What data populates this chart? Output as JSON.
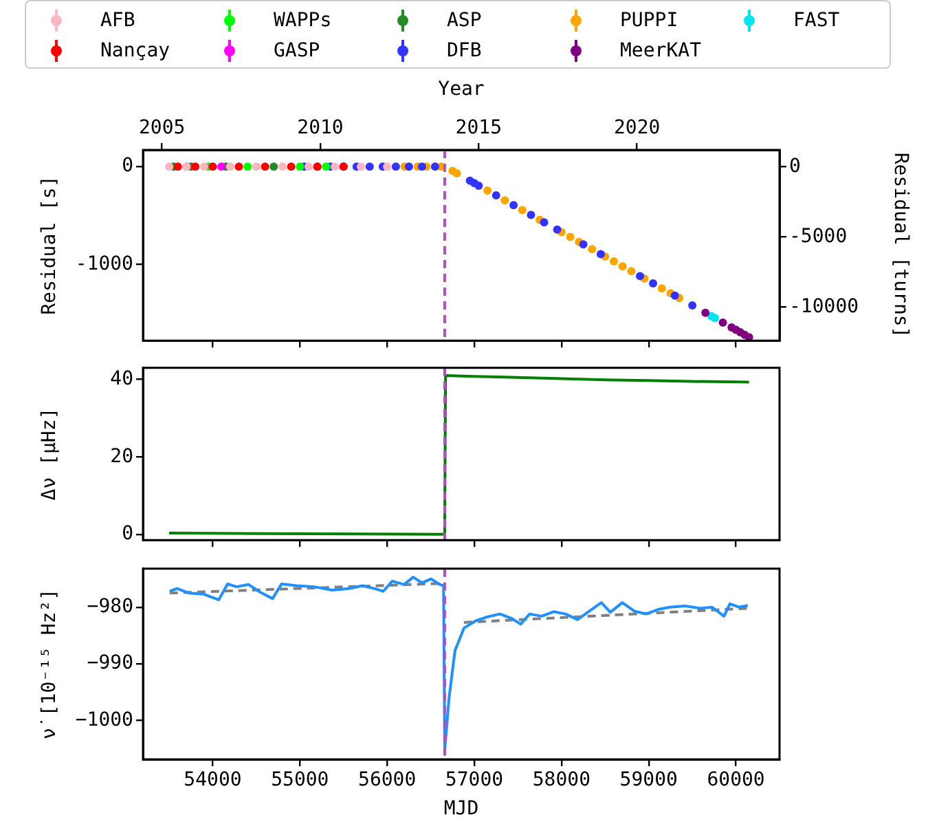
{
  "chart_data": [
    {
      "type": "scatter",
      "legend": "top",
      "marker": "circle",
      "tick_labels": "y",
      "xlim": [
        53200,
        60500
      ],
      "xticks": [
        54000,
        55000,
        56000,
        57000,
        58000,
        59000,
        60000
      ],
      "x2label": "Year",
      "x2lim": [
        2004.4,
        2024.5
      ],
      "x2ticks": [
        2005,
        2010,
        2015,
        2020
      ],
      "ylabel": "Residual [s]",
      "ylim": [
        -1780,
        170
      ],
      "yticks": [
        -1000,
        0
      ],
      "y2label": "Residual [turns]",
      "y2lim": [
        -12390,
        1190
      ],
      "y2ticks": [
        -10000,
        -5000,
        0
      ],
      "ref_lines": [
        {
          "axis": "x",
          "value": 56660,
          "color": "#b04fc0",
          "line_style": "dashed"
        }
      ],
      "series": [
        {
          "name": "AFB",
          "color": "#ffb6c1",
          "x": [
            53500,
            53700,
            53900,
            54200,
            54500,
            54800,
            55100,
            55400,
            55700,
            56000
          ],
          "values": [
            0,
            0,
            0,
            0,
            0,
            0,
            0,
            0,
            0,
            0
          ]
        },
        {
          "name": "Nançay",
          "color": "#ff0000",
          "x": [
            53600,
            53800,
            54000,
            54300,
            54600,
            54900,
            55200,
            55500
          ],
          "values": [
            0,
            0,
            0,
            0,
            0,
            0,
            0,
            0
          ]
        },
        {
          "name": "WAPPs",
          "color": "#00ff00",
          "x": [
            53950,
            54400,
            55000,
            55300
          ],
          "values": [
            0,
            0,
            0,
            0
          ]
        },
        {
          "name": "GASP",
          "color": "#ff00ff",
          "x": [
            53700,
            54100
          ],
          "values": [
            0,
            0
          ]
        },
        {
          "name": "ASP",
          "color": "#228b22",
          "x": [
            53550,
            53750,
            54150,
            54700
          ],
          "values": [
            0,
            0,
            0,
            0
          ]
        },
        {
          "name": "DFB",
          "color": "#3333ff",
          "x": [
            55050,
            55200,
            55350,
            55500,
            55650,
            55800,
            55950,
            56100,
            56250,
            56400,
            56550,
            56950,
            57000,
            57050,
            57250,
            57450,
            57650,
            57800,
            57950,
            58250,
            58450,
            58900,
            59050,
            59300,
            59500
          ],
          "values": [
            0,
            0,
            0,
            0,
            0,
            0,
            0,
            0,
            0,
            0,
            0,
            -145,
            -170,
            -195,
            -295,
            -395,
            -495,
            -570,
            -645,
            -795,
            -895,
            -1120,
            -1195,
            -1320,
            -1420
          ]
        },
        {
          "name": "PUPPI",
          "color": "#ffa500",
          "x": [
            56200,
            56350,
            56450,
            56550,
            56620,
            56750,
            56800,
            57150,
            57350,
            57550,
            57750,
            58000,
            58100,
            58200,
            58350,
            58500,
            58600,
            58700,
            58800,
            58950,
            59150,
            59250,
            59350
          ],
          "values": [
            0,
            0,
            0,
            0,
            0,
            -45,
            -70,
            -245,
            -345,
            -445,
            -545,
            -670,
            -720,
            -770,
            -845,
            -920,
            -970,
            -1020,
            -1070,
            -1145,
            -1245,
            -1295,
            -1345
          ]
        },
        {
          "name": "MeerKAT",
          "color": "#800080",
          "x": [
            59650,
            59850,
            59950,
            60000,
            60050,
            60100,
            60150
          ],
          "values": [
            -1495,
            -1595,
            -1645,
            -1670,
            -1695,
            -1720,
            -1745
          ]
        },
        {
          "name": "FAST",
          "color": "#00e5ee",
          "x": [
            59720,
            59760
          ],
          "values": [
            -1530,
            -1550
          ]
        }
      ]
    },
    {
      "type": "line",
      "marker": "none",
      "tick_labels": "y",
      "xlim": [
        53200,
        60500
      ],
      "xticks": [
        54000,
        55000,
        56000,
        57000,
        58000,
        59000,
        60000
      ],
      "ylabel": "Δν [μHz]",
      "ylim": [
        -1.5,
        43
      ],
      "yticks": [
        0,
        20,
        40
      ],
      "ref_lines": [
        {
          "axis": "x",
          "value": 56660,
          "color": "#b04fc0",
          "line_style": "dashed"
        }
      ],
      "series": [
        {
          "color": "#008000",
          "x": [
            53500,
            54500,
            55500,
            56600,
            56660,
            56670,
            57000,
            57500,
            58000,
            58500,
            59000,
            59500,
            60150
          ],
          "values": [
            0.3,
            0.2,
            0.1,
            0,
            0,
            41,
            40.8,
            40.5,
            40.2,
            39.9,
            39.7,
            39.5,
            39.3
          ]
        }
      ]
    },
    {
      "type": "line",
      "marker": "none",
      "xlabel": "MJD",
      "xlim": [
        53200,
        60500
      ],
      "xticks": [
        54000,
        55000,
        56000,
        57000,
        58000,
        59000,
        60000
      ],
      "ylabel": "ν̇ [10⁻¹⁵ Hz²]",
      "ylim": [
        -1006.9,
        -973.2
      ],
      "yticks": [
        {
          "value": -1000,
          "label": "−1000"
        },
        {
          "value": -990,
          "label": "−990"
        },
        {
          "value": -980,
          "label": "−980"
        }
      ],
      "ref_lines": [
        {
          "axis": "x",
          "value": 56660,
          "color": "#b04fc0",
          "line_style": "dashed"
        }
      ],
      "series": [
        {
          "color": "#1e90ff",
          "x": [
            53506,
            53590,
            53726,
            53897,
            54069,
            54171,
            54274,
            54411,
            54549,
            54686,
            54789,
            54960,
            55166,
            55372,
            55577,
            55714,
            55852,
            55955,
            56058,
            56195,
            56298,
            56400,
            56503,
            56606,
            56647,
            56661,
            56709,
            56778,
            56881,
            57018,
            57155,
            57292,
            57429,
            57532,
            57635,
            57772,
            57909,
            58046,
            58183,
            58320,
            58457,
            58560,
            58697,
            58834,
            58971,
            59108,
            59245,
            59417,
            59588,
            59726,
            59863,
            59931,
            60034,
            60137
          ],
          "values": [
            -977.2,
            -976.7,
            -977.5,
            -977.7,
            -978.7,
            -975.9,
            -976.4,
            -976,
            -977.4,
            -978.5,
            -975.9,
            -976.2,
            -976.4,
            -977,
            -976.7,
            -976.2,
            -976.7,
            -977.2,
            -975.4,
            -976,
            -974.7,
            -975.7,
            -975,
            -976,
            -976.2,
            -1005.2,
            -996.2,
            -987.7,
            -983.7,
            -982.4,
            -981.7,
            -981.2,
            -982,
            -983,
            -981.2,
            -981.6,
            -980.8,
            -981.2,
            -982.2,
            -980.7,
            -979.2,
            -980.9,
            -979.2,
            -980.7,
            -981.2,
            -980.4,
            -980,
            -979.8,
            -980.2,
            -980,
            -981.6,
            -979.4,
            -980,
            -979.7
          ]
        },
        {
          "color": "#808080",
          "line_style": "dashed",
          "x": [
            53506,
            56647,
            56700,
            56881,
            60137
          ],
          "values": [
            -977.5,
            -975.8,
            null,
            -982.7,
            -980.2
          ]
        }
      ]
    }
  ]
}
